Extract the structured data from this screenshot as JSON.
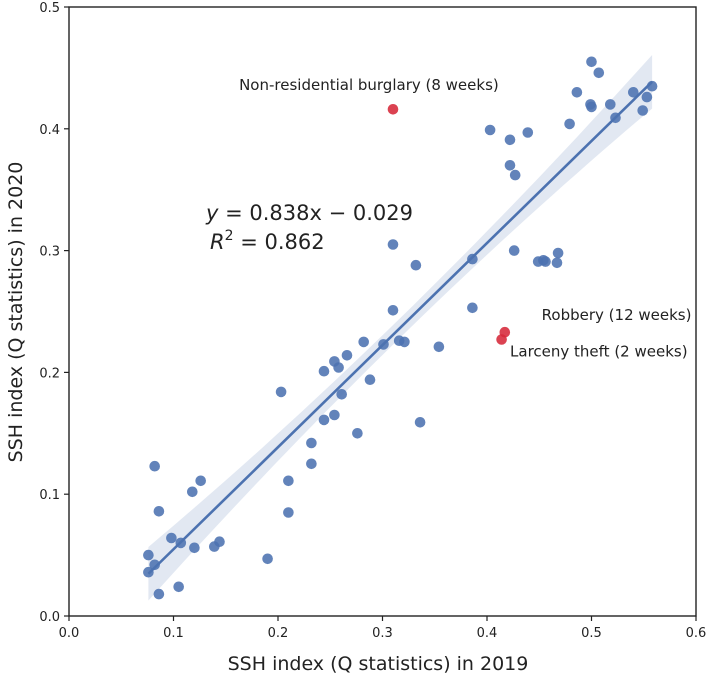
{
  "chart_data": {
    "type": "scatter",
    "xlabel": "SSH index (Q statistics) in 2019",
    "ylabel": "SSH index (Q statistics) in 2020",
    "xlim": [
      0.0,
      0.6
    ],
    "ylim": [
      0.0,
      0.5
    ],
    "x_ticks": [
      "0.0",
      "0.1",
      "0.2",
      "0.3",
      "0.4",
      "0.5",
      "0.6"
    ],
    "y_ticks": [
      "0.0",
      "0.1",
      "0.2",
      "0.3",
      "0.4",
      "0.5"
    ],
    "grid": false,
    "regression": {
      "slope": 0.838,
      "intercept": -0.029,
      "x_range": [
        0.076,
        0.558
      ],
      "ci_halfwidth_ends": 0.022,
      "ci_halfwidth_mid": 0.008,
      "equation_lhs": "y",
      "equation_rhs": " = 0.838x − 0.029",
      "r2_label": "R",
      "r2_exp": "2",
      "r2_value": " = 0.862"
    },
    "series": [
      {
        "name": "crimes",
        "color": "#4c72b0",
        "points": [
          [
            0.076,
            0.05
          ],
          [
            0.076,
            0.036
          ],
          [
            0.082,
            0.042
          ],
          [
            0.082,
            0.123
          ],
          [
            0.086,
            0.086
          ],
          [
            0.086,
            0.018
          ],
          [
            0.098,
            0.064
          ],
          [
            0.105,
            0.024
          ],
          [
            0.107,
            0.06
          ],
          [
            0.118,
            0.102
          ],
          [
            0.12,
            0.056
          ],
          [
            0.126,
            0.111
          ],
          [
            0.139,
            0.057
          ],
          [
            0.144,
            0.061
          ],
          [
            0.19,
            0.047
          ],
          [
            0.203,
            0.184
          ],
          [
            0.21,
            0.111
          ],
          [
            0.21,
            0.085
          ],
          [
            0.232,
            0.125
          ],
          [
            0.232,
            0.142
          ],
          [
            0.244,
            0.201
          ],
          [
            0.244,
            0.161
          ],
          [
            0.254,
            0.209
          ],
          [
            0.254,
            0.165
          ],
          [
            0.258,
            0.204
          ],
          [
            0.261,
            0.182
          ],
          [
            0.266,
            0.214
          ],
          [
            0.276,
            0.15
          ],
          [
            0.282,
            0.225
          ],
          [
            0.288,
            0.194
          ],
          [
            0.301,
            0.223
          ],
          [
            0.31,
            0.305
          ],
          [
            0.31,
            0.251
          ],
          [
            0.316,
            0.226
          ],
          [
            0.321,
            0.225
          ],
          [
            0.332,
            0.288
          ],
          [
            0.336,
            0.159
          ],
          [
            0.354,
            0.221
          ],
          [
            0.386,
            0.293
          ],
          [
            0.386,
            0.253
          ],
          [
            0.403,
            0.399
          ],
          [
            0.422,
            0.391
          ],
          [
            0.422,
            0.37
          ],
          [
            0.426,
            0.3
          ],
          [
            0.427,
            0.362
          ],
          [
            0.439,
            0.397
          ],
          [
            0.449,
            0.291
          ],
          [
            0.454,
            0.292
          ],
          [
            0.456,
            0.291
          ],
          [
            0.467,
            0.29
          ],
          [
            0.468,
            0.298
          ],
          [
            0.479,
            0.404
          ],
          [
            0.486,
            0.43
          ],
          [
            0.499,
            0.42
          ],
          [
            0.5,
            0.418
          ],
          [
            0.5,
            0.455
          ],
          [
            0.507,
            0.446
          ],
          [
            0.518,
            0.42
          ],
          [
            0.523,
            0.409
          ],
          [
            0.54,
            0.43
          ],
          [
            0.549,
            0.415
          ],
          [
            0.553,
            0.426
          ],
          [
            0.558,
            0.435
          ]
        ]
      },
      {
        "name": "highlighted",
        "color": "#d62839",
        "points": [
          [
            0.31,
            0.416
          ],
          [
            0.417,
            0.233
          ],
          [
            0.414,
            0.227
          ]
        ]
      }
    ],
    "annotations": [
      {
        "text": "Non-residential burglary (8 weeks)",
        "x": 0.287,
        "y": 0.432
      },
      {
        "text": "Robbery (12 weeks)",
        "x": 0.524,
        "y": 0.243
      },
      {
        "text": "Larceny theft (2 weeks)",
        "x": 0.507,
        "y": 0.213
      }
    ]
  }
}
